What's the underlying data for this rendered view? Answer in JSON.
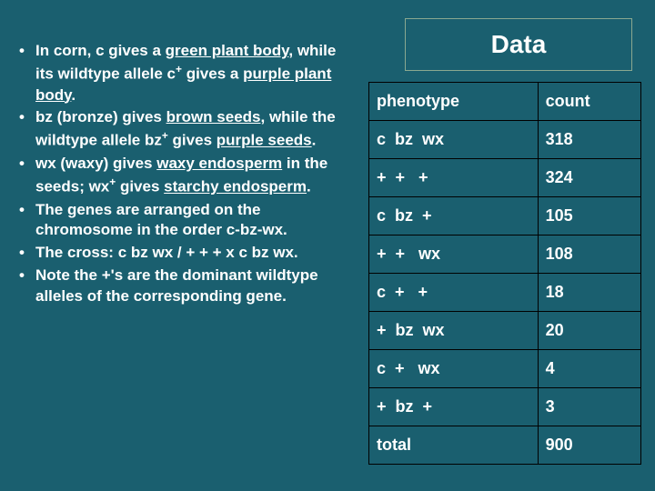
{
  "title": "Data",
  "bullets": [
    "In corn, c gives a <span class='underline'>green plant body</span>, while its wildtype allele c<sup>+</sup> gives a <span class='underline'>purple plant body</span>.",
    "bz (bronze) gives <span class='underline'>brown seeds</span>, while the wildtype allele bz<sup>+</sup> gives <span class='underline'>purple seeds</span>.",
    "wx (waxy) gives <span class='underline'>waxy endosperm</span> in the seeds; wx<sup>+</sup> gives <span class='underline'>starchy endosperm</span>.",
    "The genes are arranged on the chromosome in the order c-bz-wx.",
    "The cross: c bz wx / + + +   x c bz wx.",
    "Note the +'s are the dominant wildtype alleles of the corresponding gene."
  ],
  "table": {
    "headers": [
      "phenotype",
      "count"
    ],
    "rows": [
      [
        "c  bz  wx",
        "318"
      ],
      [
        "+  +   +",
        "324"
      ],
      [
        "c  bz  +",
        "105"
      ],
      [
        "+  +   wx",
        "108"
      ],
      [
        "c  +   +",
        "18"
      ],
      [
        "+  bz  wx",
        "20"
      ],
      [
        "c  +   wx",
        "4"
      ],
      [
        "+  bz  +",
        "3"
      ],
      [
        "total",
        "900"
      ]
    ]
  },
  "colors": {
    "background": "#1a5f6f",
    "text": "#ffffff",
    "border": "#000000",
    "title_border": "#8aa890"
  }
}
